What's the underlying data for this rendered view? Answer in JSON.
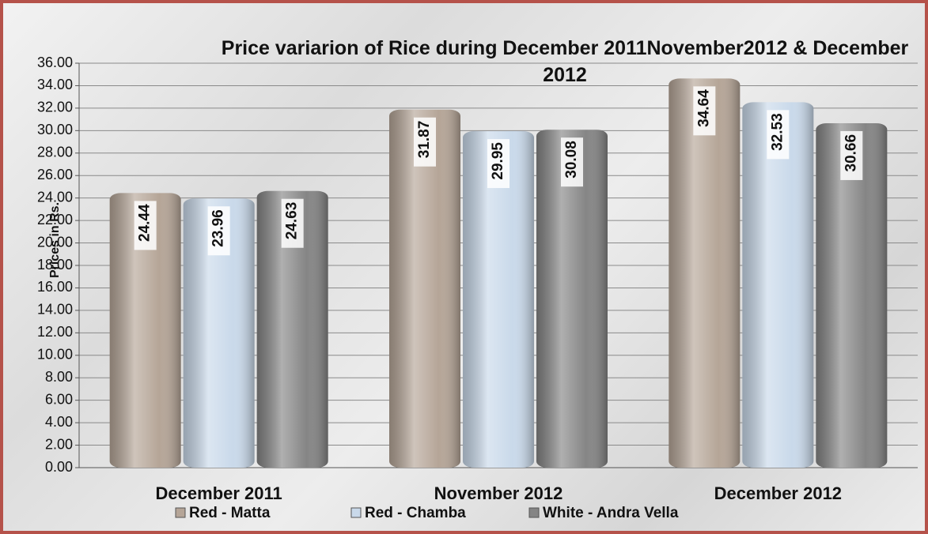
{
  "chart_data": {
    "type": "bar",
    "title": "Price variarion of Rice during December 2011November2012 & December 2012",
    "y_label": "Prices in Rs.",
    "categories": [
      "December 2011",
      "November 2012",
      "December 2012"
    ],
    "series": [
      {
        "name": "Red - Matta",
        "color": "#b5a597",
        "values": [
          24.44,
          31.87,
          34.64
        ]
      },
      {
        "name": "Red - Chamba",
        "color": "#c9d9ea",
        "values": [
          23.96,
          29.95,
          32.53
        ]
      },
      {
        "name": "White - Andra Vella",
        "color": "#858585",
        "values": [
          24.63,
          30.08,
          30.66
        ]
      }
    ],
    "ylim": [
      0,
      36
    ],
    "yticks": [
      {
        "value": 0,
        "label": "0.00"
      },
      {
        "value": 2,
        "label": "2.00"
      },
      {
        "value": 4,
        "label": "4.00"
      },
      {
        "value": 6,
        "label": "6.00"
      },
      {
        "value": 8,
        "label": "8.00"
      },
      {
        "value": 10,
        "label": "10.00"
      },
      {
        "value": 12,
        "label": "12.00"
      },
      {
        "value": 14,
        "label": "14.00"
      },
      {
        "value": 16,
        "label": "16.00"
      },
      {
        "value": 18,
        "label": "18.00"
      },
      {
        "value": 20,
        "label": "20.00"
      },
      {
        "value": 22,
        "label": "22.00"
      },
      {
        "value": 24,
        "label": "24.00"
      },
      {
        "value": 26,
        "label": "26.00"
      },
      {
        "value": 28,
        "label": "28.00"
      },
      {
        "value": 30,
        "label": "30.00"
      },
      {
        "value": 32,
        "label": "32.00"
      },
      {
        "value": 34,
        "label": "34.00"
      },
      {
        "value": 36,
        "label": "36.00"
      }
    ],
    "grid": true,
    "legend": "bottom"
  }
}
